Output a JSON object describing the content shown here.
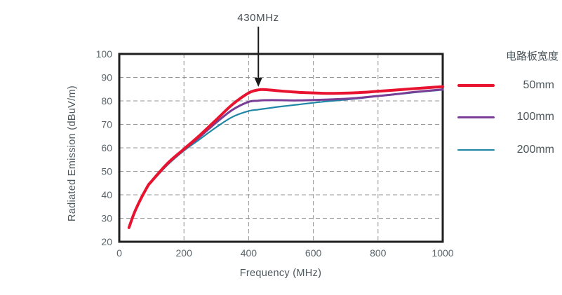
{
  "chart_data": {
    "type": "line",
    "xlabel": "Frequency (MHz)",
    "ylabel": "Radiated Emission (dBuV/m)",
    "xlim": [
      0,
      1000
    ],
    "ylim": [
      20,
      100
    ],
    "x_ticks": [
      0,
      200,
      400,
      600,
      800,
      1000
    ],
    "y_ticks": [
      20,
      30,
      40,
      50,
      60,
      70,
      80,
      90,
      100
    ],
    "grid": "dashed interior gridlines, vertical at 200/400/600/800 MHz, horizontal at 30-90 dBuV/m",
    "annotation": {
      "label": "430MHz",
      "x": 430,
      "points_to_value": 85
    },
    "legend": {
      "title": "电路板宽度",
      "position": "right"
    },
    "x": [
      30,
      50,
      85,
      100,
      150,
      200,
      250,
      300,
      350,
      400,
      430,
      450,
      500,
      550,
      600,
      650,
      700,
      750,
      800,
      850,
      900,
      950,
      1000
    ],
    "series": [
      {
        "name": "50mm",
        "color": "#e8132f",
        "stroke_width": 4,
        "values": [
          26,
          33.5,
          43,
          45.8,
          53.5,
          59.5,
          65.5,
          72,
          78.5,
          83.4,
          84.7,
          84.8,
          84.2,
          83.7,
          83.4,
          83.2,
          83.3,
          83.6,
          84.1,
          84.6,
          85.1,
          85.6,
          86.1
        ]
      },
      {
        "name": "100mm",
        "color": "#7a3e97",
        "stroke_width": 3,
        "values": [
          26,
          33.4,
          42.8,
          45.6,
          53.2,
          59.2,
          64.8,
          70.8,
          76.2,
          79.6,
          80.1,
          80.3,
          80.3,
          80.2,
          80.4,
          80.6,
          80.9,
          81.4,
          82.1,
          82.8,
          83.6,
          84.3,
          84.9
        ]
      },
      {
        "name": "200mm",
        "color": "#1f86a6",
        "stroke_width": 2.2,
        "values": [
          26,
          33.3,
          42.6,
          45.4,
          52.8,
          58.8,
          63.8,
          68.8,
          73.2,
          75.7,
          76.3,
          76.7,
          77.6,
          78.4,
          79.2,
          79.9,
          80.5,
          81.2,
          82,
          82.7,
          83.4,
          84.1,
          84.7
        ]
      }
    ],
    "colors": {
      "axis": "#1f1f1f",
      "grid": "#949494",
      "tick_text": "#5b666c",
      "annotation_arrow": "#17191a"
    }
  }
}
